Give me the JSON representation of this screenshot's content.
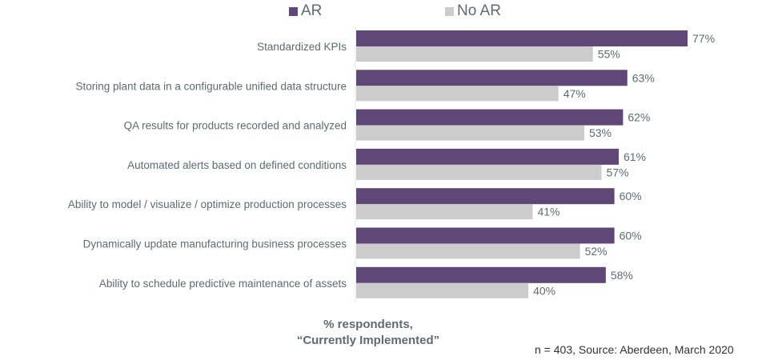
{
  "chart_data": {
    "type": "bar",
    "orientation": "horizontal",
    "title": "",
    "categories": [
      "Standardized KPIs",
      "Storing plant data in a configurable unified data structure",
      "QA results for products recorded and analyzed",
      "Automated alerts based on defined conditions",
      "Ability to model / visualize / optimize production processes",
      "Dynamically update manufacturing business processes",
      "Ability to schedule predictive maintenance of assets"
    ],
    "series": [
      {
        "name": "AR",
        "color": "#5f4878",
        "values": [
          77,
          63,
          62,
          61,
          60,
          60,
          58
        ]
      },
      {
        "name": "No AR",
        "color": "#cccccc",
        "values": [
          55,
          47,
          53,
          57,
          41,
          52,
          40
        ]
      }
    ],
    "value_format": "{v}%",
    "xlabel_line1": "% respondents,",
    "xlabel_line2": "“Currently Implemented”",
    "ylabel": "",
    "xlim": [
      0,
      100
    ],
    "grid": false,
    "legend": "top-center",
    "source_note": "n = 403, Source: Aberdeen, March 2020"
  }
}
